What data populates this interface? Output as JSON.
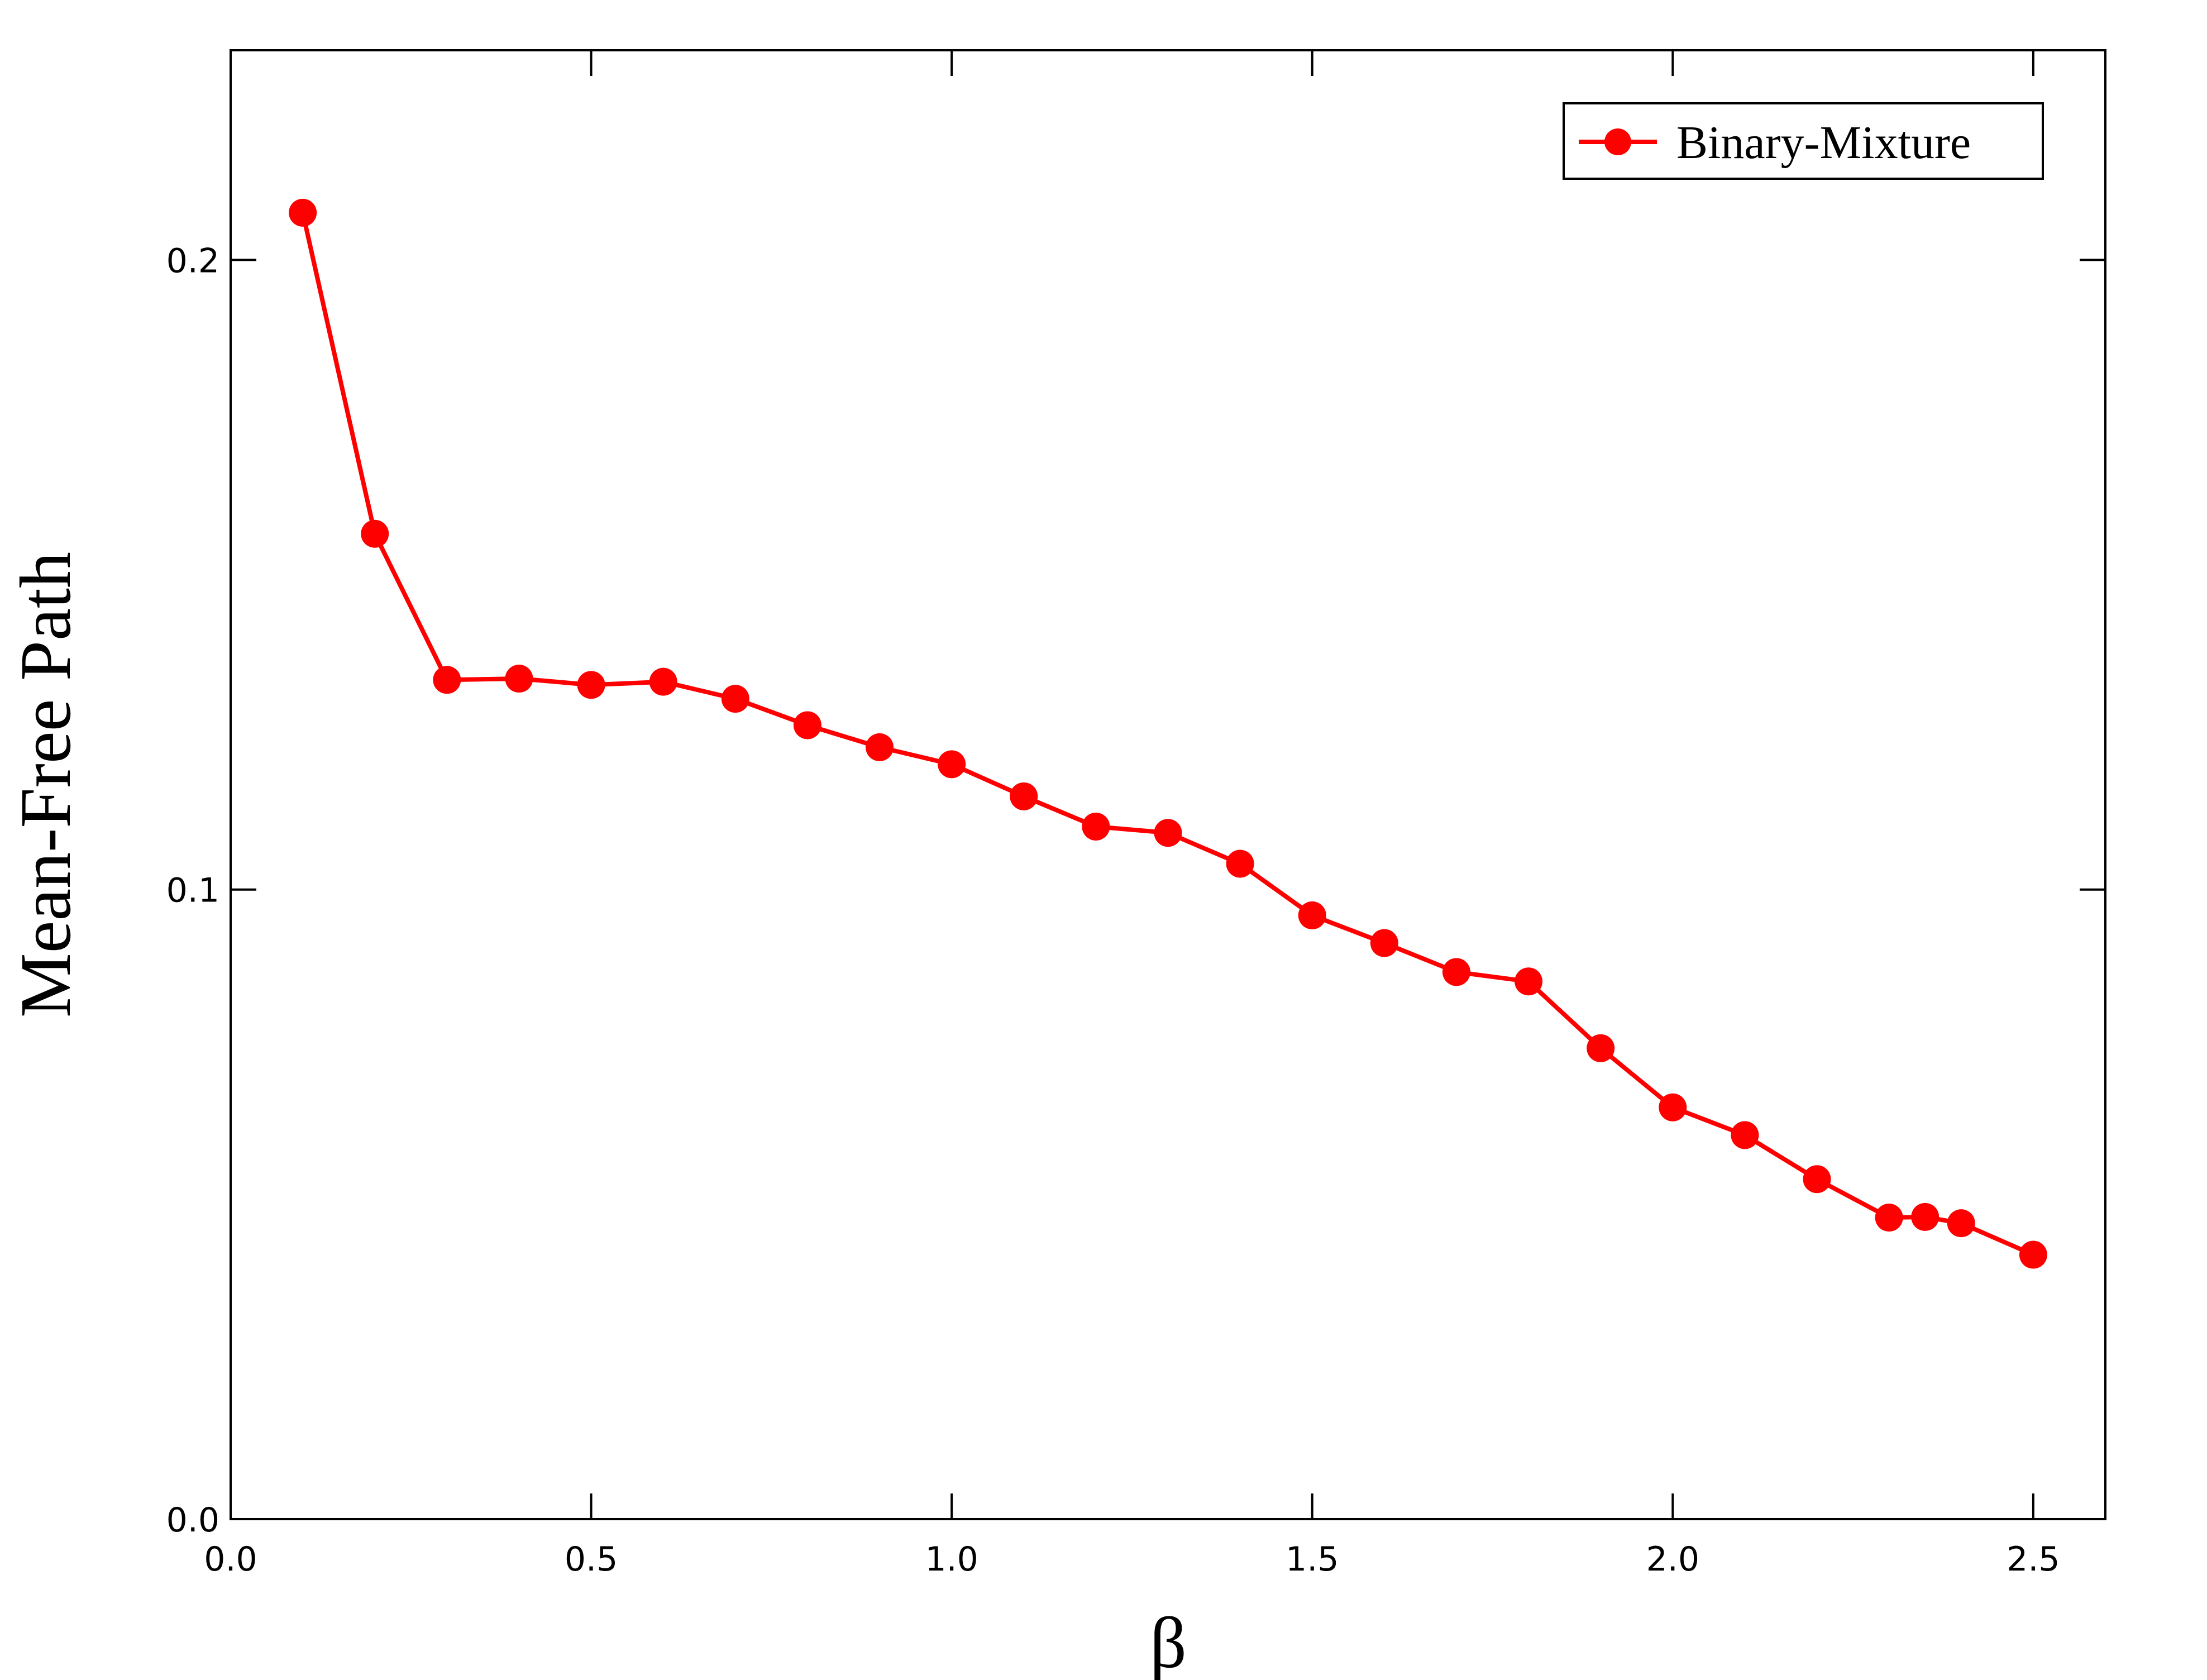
{
  "chart_data": {
    "type": "line",
    "title": "",
    "xlabel": "β",
    "ylabel": "Mean-Free Path",
    "xlim": [
      0.0,
      2.6
    ],
    "ylim": [
      0.0,
      0.2333
    ],
    "xticks": [
      0.0,
      0.5,
      1.0,
      1.5,
      2.0,
      2.5
    ],
    "xtick_labels": [
      "0.0",
      "0.5",
      "1.0",
      "1.5",
      "2.0",
      "2.5"
    ],
    "yticks": [
      0.0,
      0.1,
      0.2
    ],
    "ytick_labels": [
      "0.0",
      "0.1",
      "0.2"
    ],
    "grid": false,
    "legend_position": "top-right",
    "series": [
      {
        "name": "Binary-Mixture",
        "color": "#ff0000",
        "marker": "circle",
        "x": [
          0.1,
          0.2,
          0.3,
          0.4,
          0.5,
          0.6,
          0.7,
          0.8,
          0.9,
          1.0,
          1.1,
          1.2,
          1.3,
          1.4,
          1.5,
          1.6,
          1.7,
          1.8,
          1.9,
          2.0,
          2.1,
          2.2,
          2.3,
          2.35,
          2.4,
          2.5
        ],
        "y": [
          0.2075,
          0.1565,
          0.1333,
          0.1335,
          0.1325,
          0.133,
          0.1303,
          0.1261,
          0.1226,
          0.1199,
          0.1148,
          0.11,
          0.109,
          0.1041,
          0.0959,
          0.0915,
          0.0869,
          0.0854,
          0.0748,
          0.0654,
          0.061,
          0.054,
          0.0479,
          0.048,
          0.047,
          0.042
        ]
      }
    ]
  }
}
